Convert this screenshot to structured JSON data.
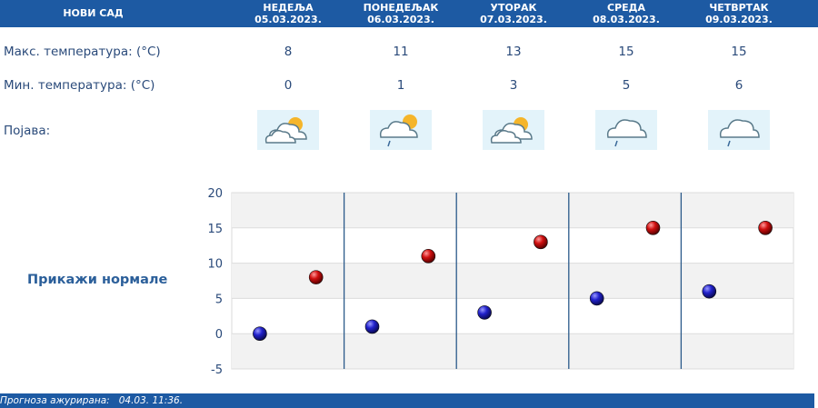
{
  "header": {
    "city": "НОВИ САД",
    "days": [
      {
        "name": "НЕДЕЉА",
        "date": "05.03.2023."
      },
      {
        "name": "ПОНЕДЕЉАК",
        "date": "06.03.2023."
      },
      {
        "name": "УТОРАК",
        "date": "07.03.2023."
      },
      {
        "name": "СРЕДА",
        "date": "08.03.2023."
      },
      {
        "name": "ЧЕТВРТАК",
        "date": "09.03.2023."
      }
    ]
  },
  "rows": {
    "max_label": "Макс. температура: (°C)",
    "min_label": "Мин. температура: (°C)",
    "phenomenon_label": "Појава:"
  },
  "forecast": {
    "max": [
      "8",
      "11",
      "13",
      "15",
      "15"
    ],
    "min": [
      "0",
      "1",
      "3",
      "5",
      "6"
    ],
    "icons": [
      "partly-cloudy-icon",
      "partly-cloudy-rain-icon",
      "partly-cloudy-icon",
      "cloud-rain-icon",
      "cloud-rain-icon"
    ]
  },
  "normals_link": "Прикажи нормале",
  "chart_data": {
    "type": "scatter",
    "y_ticks": [
      "20",
      "15",
      "10",
      "5",
      "0",
      "-5"
    ],
    "ylim": [
      -5,
      20
    ],
    "grid": true,
    "series": [
      {
        "color": "#1515b0",
        "values": [
          0,
          1,
          3,
          5,
          6
        ]
      },
      {
        "color": "#c01010",
        "values": [
          8,
          11,
          13,
          15,
          15
        ]
      }
    ]
  },
  "footer": {
    "label": "Прогноза ажурирана:",
    "value": "04.03. 11:36."
  }
}
